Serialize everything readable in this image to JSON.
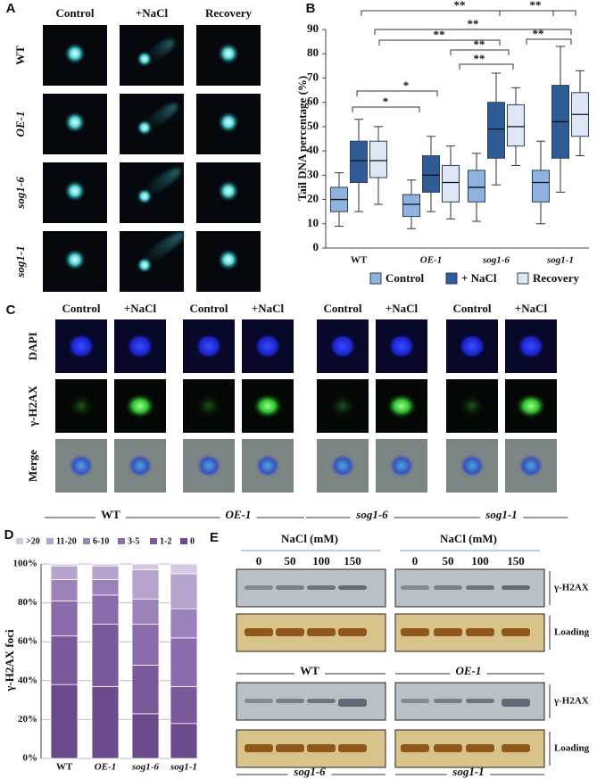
{
  "panel_a": {
    "label": "A",
    "columns": [
      "Control",
      "+NaCl",
      "Recovery"
    ],
    "rows": [
      "WT",
      "OE-1",
      "sog1-6",
      "sog1-1"
    ]
  },
  "chart_data": [
    {
      "type": "box",
      "panel": "B",
      "ylabel": "Tail DNA percentage (%)",
      "categories": [
        "WT",
        "OE-1",
        "sog1-6",
        "sog1-1"
      ],
      "ylim": [
        0,
        90
      ],
      "yticks": [
        0,
        10,
        20,
        30,
        40,
        50,
        60,
        70,
        80,
        90
      ],
      "grid": false,
      "legend": "bottom",
      "series": [
        {
          "name": "Control",
          "color": "#8fb2df",
          "min": [
            9,
            8,
            11,
            10
          ],
          "q1": [
            15,
            13,
            19,
            19
          ],
          "median": [
            20,
            18,
            25,
            27
          ],
          "q3": [
            25,
            22,
            32,
            32
          ],
          "max": [
            31,
            28,
            39,
            44
          ]
        },
        {
          "name": "+ NaCl",
          "color": "#2f5c97",
          "min": [
            15,
            15,
            26,
            23
          ],
          "q1": [
            27,
            23,
            37,
            37
          ],
          "median": [
            36,
            30,
            49,
            52
          ],
          "q3": [
            44,
            38,
            60,
            67
          ],
          "max": [
            53,
            46,
            72,
            83
          ]
        },
        {
          "name": "Recovery",
          "color": "#dde7f4",
          "min": [
            18,
            12,
            34,
            38
          ],
          "q1": [
            29,
            19,
            42,
            46
          ],
          "median": [
            36,
            27,
            50,
            55
          ],
          "q3": [
            44,
            34,
            59,
            64
          ],
          "max": [
            50,
            42,
            66,
            73
          ]
        }
      ],
      "annotations": [
        "**",
        "**",
        "**",
        "**",
        "**",
        "**",
        "**",
        "*",
        "*"
      ]
    },
    {
      "type": "stacked_bar",
      "panel": "D",
      "ylabel": "γ-H2AX foci",
      "categories": [
        "WT",
        "OE-1",
        "sog1-6",
        "sog1-1"
      ],
      "ylim": [
        0,
        100
      ],
      "yticks": [
        {
          "value": 0,
          "label": "0%"
        },
        {
          "value": 20,
          "label": "20%"
        },
        {
          "value": 40,
          "label": "40%"
        },
        {
          "value": 60,
          "label": "60%"
        },
        {
          "value": 80,
          "label": "80%"
        },
        {
          "value": 100,
          "label": "100%"
        }
      ],
      "grid": true,
      "legend": "top",
      "series": [
        {
          "name": "0",
          "color": "#6b4b8c",
          "values": [
            38,
            37,
            23,
            18
          ]
        },
        {
          "name": "1-2",
          "color": "#7a5a9b",
          "values": [
            25,
            32,
            25,
            19
          ]
        },
        {
          "name": "3-5",
          "color": "#8a6bab",
          "values": [
            18,
            15,
            21,
            25
          ]
        },
        {
          "name": "6-10",
          "color": "#9c82bb",
          "values": [
            11,
            8,
            13,
            15
          ]
        },
        {
          "name": "11-20",
          "color": "#b5a2cd",
          "values": [
            7,
            7,
            15,
            18
          ]
        },
        {
          "name": ">20",
          "color": "#d4c9e2",
          "values": [
            1,
            1,
            3,
            5
          ]
        }
      ]
    }
  ],
  "panel_c": {
    "label": "C",
    "columns": [
      "Control",
      "+NaCl"
    ],
    "rows": [
      "DAPI",
      "γ-H2AX",
      "Merge"
    ],
    "groups": [
      "WT",
      "OE-1",
      "sog1-6",
      "sog1-1"
    ]
  },
  "panel_e": {
    "label": "E",
    "condition": "NaCl (mM)",
    "lanes": [
      0,
      50,
      100,
      150
    ],
    "bands": [
      "γ-H2AX",
      "Loading"
    ],
    "groups": [
      "WT",
      "OE-1",
      "sog1-6",
      "sog1-1"
    ]
  }
}
